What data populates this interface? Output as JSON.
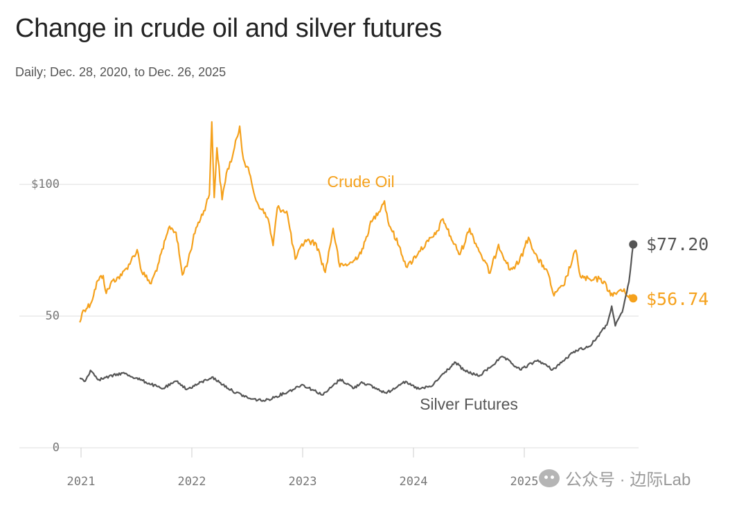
{
  "chart_data": {
    "type": "line",
    "title": "Change in crude oil and silver futures",
    "subtitle": "Daily; Dec. 28, 2020, to Dec. 26, 2025",
    "ylim": [
      0,
      100
    ],
    "y_ticks": [
      0,
      50,
      100
    ],
    "y_tick_labels": [
      "0",
      "50",
      "$100"
    ],
    "x_ticks": [
      "2021",
      "2022",
      "2023",
      "2024",
      "2025"
    ],
    "grid": true,
    "series": [
      {
        "name": "Crude Oil",
        "color": "#f5a11c",
        "end_label": "$56.74",
        "points": [
          [
            "2020-12-28",
            47.6
          ],
          [
            "2021-01-08",
            52.2
          ],
          [
            "2021-02-01",
            54.5
          ],
          [
            "2021-02-25",
            63.5
          ],
          [
            "2021-03-15",
            65.4
          ],
          [
            "2021-03-25",
            58.6
          ],
          [
            "2021-04-15",
            63.5
          ],
          [
            "2021-05-15",
            65.4
          ],
          [
            "2021-06-15",
            71.0
          ],
          [
            "2021-07-05",
            75.2
          ],
          [
            "2021-07-20",
            66.8
          ],
          [
            "2021-08-20",
            62.3
          ],
          [
            "2021-09-15",
            70.5
          ],
          [
            "2021-10-20",
            84.1
          ],
          [
            "2021-11-10",
            81.8
          ],
          [
            "2021-12-01",
            65.6
          ],
          [
            "2021-12-20",
            71.0
          ],
          [
            "2022-01-15",
            83.5
          ],
          [
            "2022-02-10",
            90.0
          ],
          [
            "2022-02-28",
            96.1
          ],
          [
            "2022-03-08",
            123.7
          ],
          [
            "2022-03-16",
            95.0
          ],
          [
            "2022-03-25",
            113.9
          ],
          [
            "2022-04-11",
            94.2
          ],
          [
            "2022-04-25",
            104.2
          ],
          [
            "2022-05-15",
            110.5
          ],
          [
            "2022-06-08",
            122.1
          ],
          [
            "2022-06-20",
            109.6
          ],
          [
            "2022-07-10",
            104.2
          ],
          [
            "2022-08-01",
            93.8
          ],
          [
            "2022-08-20",
            90.4
          ],
          [
            "2022-09-10",
            86.8
          ],
          [
            "2022-09-26",
            76.8
          ],
          [
            "2022-10-10",
            91.1
          ],
          [
            "2022-11-10",
            89.8
          ],
          [
            "2022-12-08",
            71.6
          ],
          [
            "2023-01-10",
            78.9
          ],
          [
            "2023-02-15",
            77.5
          ],
          [
            "2023-03-17",
            66.6
          ],
          [
            "2023-04-12",
            83.3
          ],
          [
            "2023-05-04",
            68.7
          ],
          [
            "2023-06-15",
            70.4
          ],
          [
            "2023-07-20",
            75.6
          ],
          [
            "2023-08-10",
            84.2
          ],
          [
            "2023-09-28",
            93.7
          ],
          [
            "2023-10-10",
            85.9
          ],
          [
            "2023-11-15",
            76.6
          ],
          [
            "2023-12-12",
            68.5
          ],
          [
            "2024-01-20",
            74.6
          ],
          [
            "2024-02-20",
            78.4
          ],
          [
            "2024-03-15",
            81.0
          ],
          [
            "2024-04-08",
            86.9
          ],
          [
            "2024-05-10",
            78.3
          ],
          [
            "2024-06-03",
            73.4
          ],
          [
            "2024-07-05",
            83.3
          ],
          [
            "2024-07-25",
            77.6
          ],
          [
            "2024-09-10",
            66.3
          ],
          [
            "2024-10-08",
            77.2
          ],
          [
            "2024-11-15",
            67.5
          ],
          [
            "2024-12-15",
            70.4
          ],
          [
            "2025-01-15",
            79.9
          ],
          [
            "2025-02-15",
            71.3
          ],
          [
            "2025-03-15",
            67.8
          ],
          [
            "2025-04-09",
            57.7
          ],
          [
            "2025-05-10",
            61.5
          ],
          [
            "2025-06-20",
            75.0
          ],
          [
            "2025-07-05",
            65.0
          ],
          [
            "2025-08-10",
            63.4
          ],
          [
            "2025-09-10",
            64.3
          ],
          [
            "2025-10-20",
            57.6
          ],
          [
            "2025-11-15",
            60.1
          ],
          [
            "2025-12-26",
            56.74
          ]
        ]
      },
      {
        "name": "Silver Futures",
        "color": "#555555",
        "end_label": "$77.20",
        "points": [
          [
            "2020-12-28",
            26.5
          ],
          [
            "2021-01-15",
            25.3
          ],
          [
            "2021-02-01",
            29.4
          ],
          [
            "2021-03-01",
            25.9
          ],
          [
            "2021-05-18",
            28.4
          ],
          [
            "2021-07-01",
            26.5
          ],
          [
            "2021-09-25",
            22.4
          ],
          [
            "2021-11-15",
            25.3
          ],
          [
            "2021-12-15",
            22.1
          ],
          [
            "2022-03-08",
            26.8
          ],
          [
            "2022-05-15",
            21.6
          ],
          [
            "2022-07-15",
            18.5
          ],
          [
            "2022-09-01",
            17.9
          ],
          [
            "2022-11-15",
            21.3
          ],
          [
            "2022-12-30",
            24.0
          ],
          [
            "2023-03-10",
            20.1
          ],
          [
            "2023-05-05",
            26.0
          ],
          [
            "2023-06-20",
            22.6
          ],
          [
            "2023-07-15",
            25.0
          ],
          [
            "2023-10-05",
            20.7
          ],
          [
            "2023-11-30",
            25.1
          ],
          [
            "2024-01-20",
            22.3
          ],
          [
            "2024-03-01",
            23.3
          ],
          [
            "2024-04-15",
            28.8
          ],
          [
            "2024-05-20",
            32.4
          ],
          [
            "2024-06-15",
            29.4
          ],
          [
            "2024-08-05",
            27.2
          ],
          [
            "2024-10-22",
            34.6
          ],
          [
            "2024-12-18",
            29.6
          ],
          [
            "2025-02-15",
            33.3
          ],
          [
            "2025-04-04",
            29.6
          ],
          [
            "2025-05-15",
            33.5
          ],
          [
            "2025-06-20",
            37.0
          ],
          [
            "2025-08-05",
            38.5
          ],
          [
            "2025-09-30",
            46.6
          ],
          [
            "2025-10-16",
            53.8
          ],
          [
            "2025-10-28",
            46.3
          ],
          [
            "2025-11-20",
            51.5
          ],
          [
            "2025-12-12",
            63.0
          ],
          [
            "2025-12-26",
            77.2
          ]
        ]
      }
    ]
  },
  "watermark": "公众号 · 边际Lab"
}
